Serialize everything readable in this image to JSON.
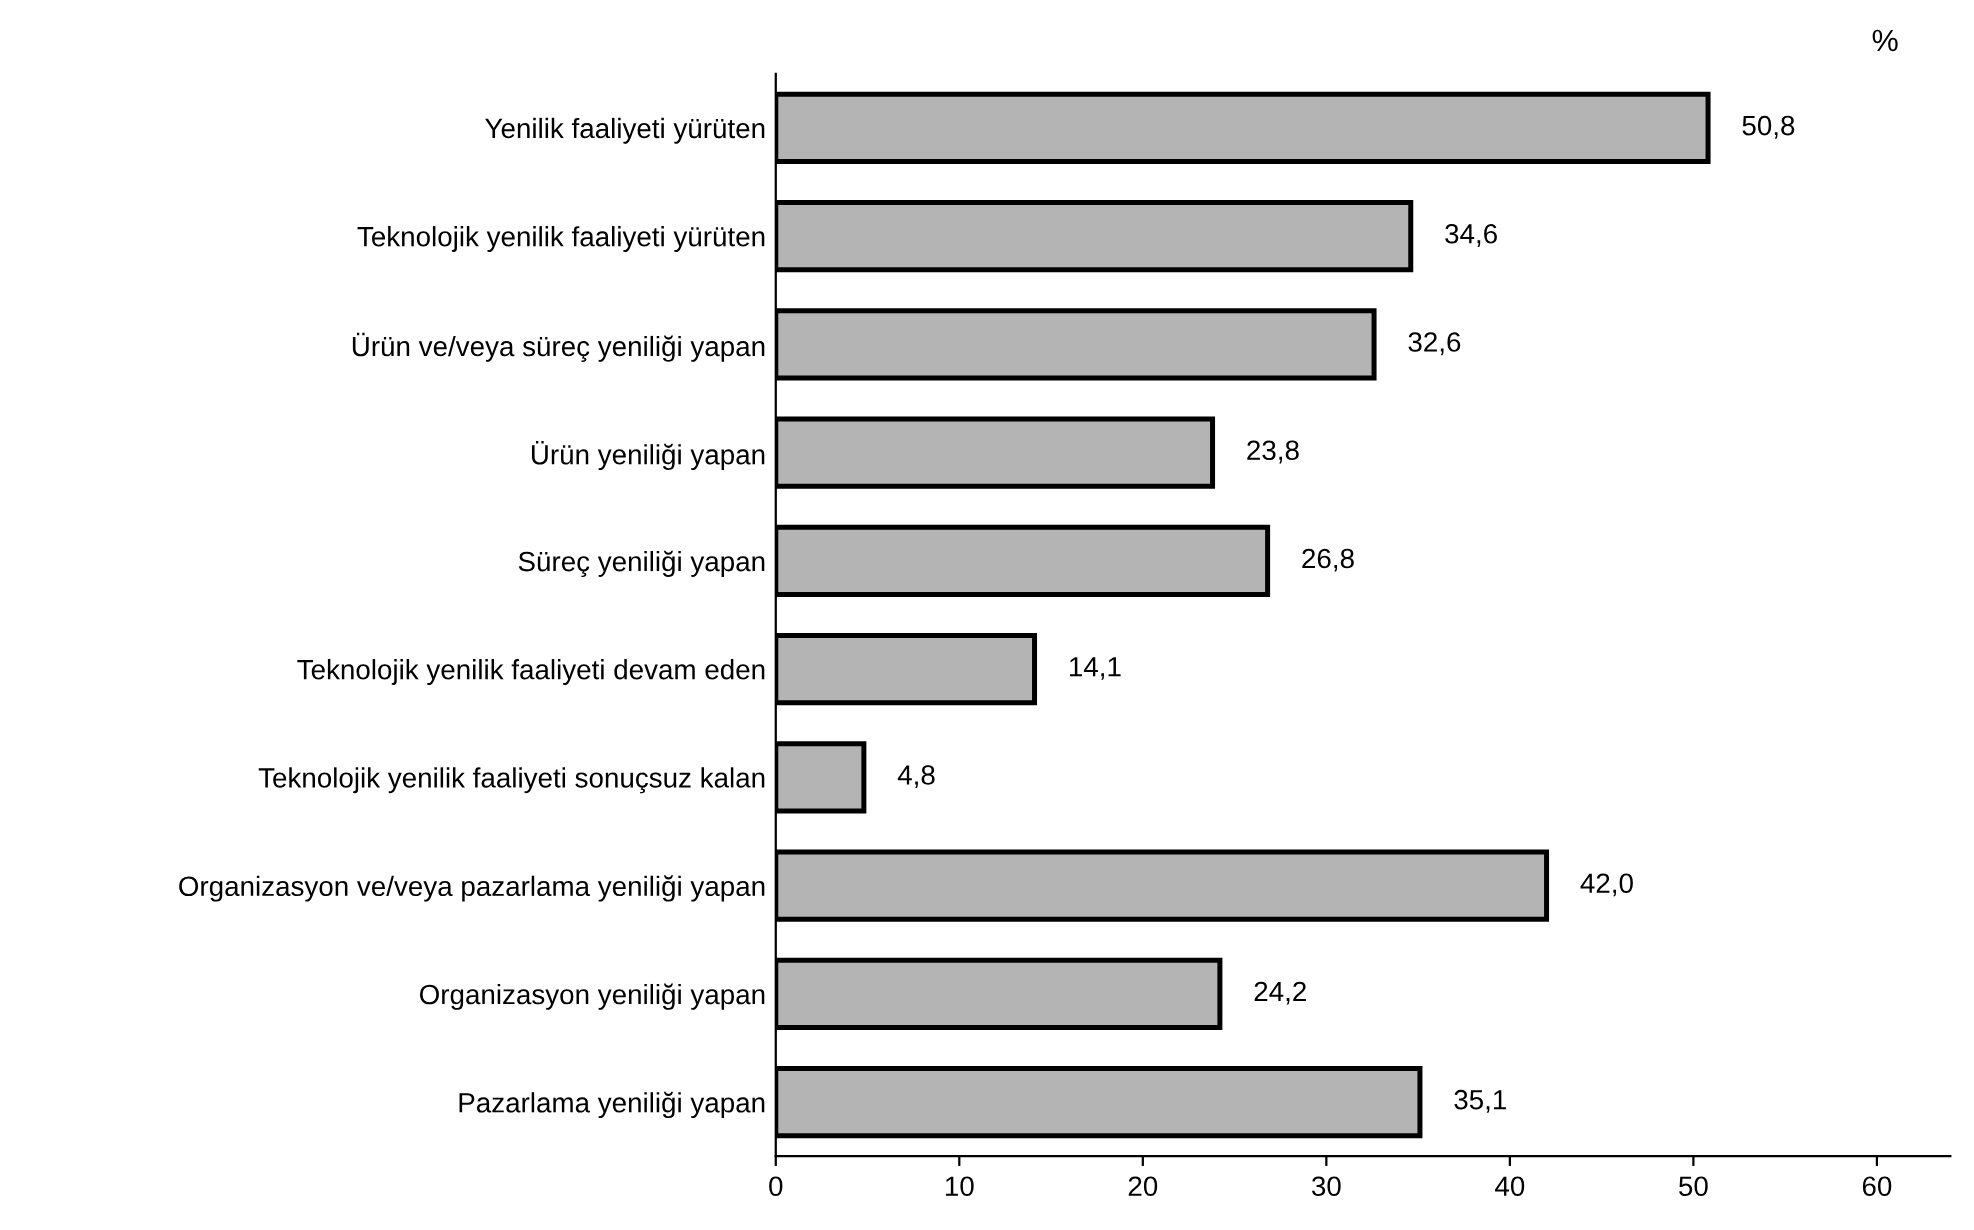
{
  "chart_data": {
    "type": "bar",
    "orientation": "horizontal",
    "categories": [
      "Yenilik faaliyeti yürüten",
      "Teknolojik yenilik faaliyeti yürüten",
      "Ürün ve/veya süreç yeniliği yapan",
      "Ürün yeniliği yapan",
      "Süreç yeniliği yapan",
      "Teknolojik yenilik faaliyeti devam eden",
      "Teknolojik yenilik faaliyeti sonuçsuz kalan",
      "Organizasyon ve/veya pazarlama yeniliği yapan",
      "Organizasyon yeniliği yapan",
      "Pazarlama yeniliği yapan"
    ],
    "values": [
      50.8,
      34.6,
      32.6,
      23.8,
      26.8,
      14.1,
      4.8,
      42.0,
      24.2,
      35.1
    ],
    "value_labels": [
      "50,8",
      "34,6",
      "32,6",
      "23,8",
      "26,8",
      "14,1",
      "4,8",
      "42,0",
      "24,2",
      "35,1"
    ],
    "color": "#b4b4b4",
    "xlim": [
      0,
      64
    ],
    "xticks": [
      0,
      10,
      20,
      30,
      40,
      50,
      60
    ],
    "annotations": [
      "%"
    ],
    "grid": false,
    "legend": false
  }
}
